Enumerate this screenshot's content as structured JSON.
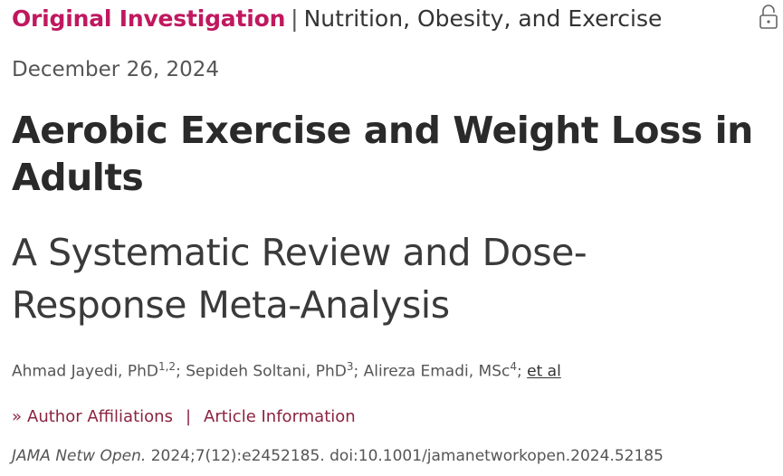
{
  "header": {
    "category": "Original Investigation",
    "separator": "|",
    "subject": "Nutrition, Obesity, and Exercise",
    "lock_icon": "unlock-icon"
  },
  "date": "December 26, 2024",
  "title_line1": "Aerobic Exercise and Weight Loss in",
  "title_line2": "Adults",
  "subtitle_line1": "A Systematic Review and Dose-",
  "subtitle_line2": "Response Meta-Analysis",
  "authors": [
    {
      "name": "Ahmad Jayedi, PhD",
      "sup": "1,2",
      "after": "; "
    },
    {
      "name": "Sepideh Soltani, PhD",
      "sup": "3",
      "after": "; "
    },
    {
      "name": "Alireza Emadi, MSc",
      "sup": "4",
      "after": "; "
    }
  ],
  "et_al": "et al",
  "links": {
    "chevron": "»",
    "affiliations": "Author Affiliations",
    "separator": "|",
    "article_info": "Article Information"
  },
  "citation": {
    "journal": "JAMA Netw Open.",
    "details": " 2024;7(12):e2452185. doi:10.1001/jamanetworkopen.2024.52185"
  },
  "colors": {
    "accent": "#c0185f",
    "link": "#8c2340",
    "text": "#222222"
  }
}
